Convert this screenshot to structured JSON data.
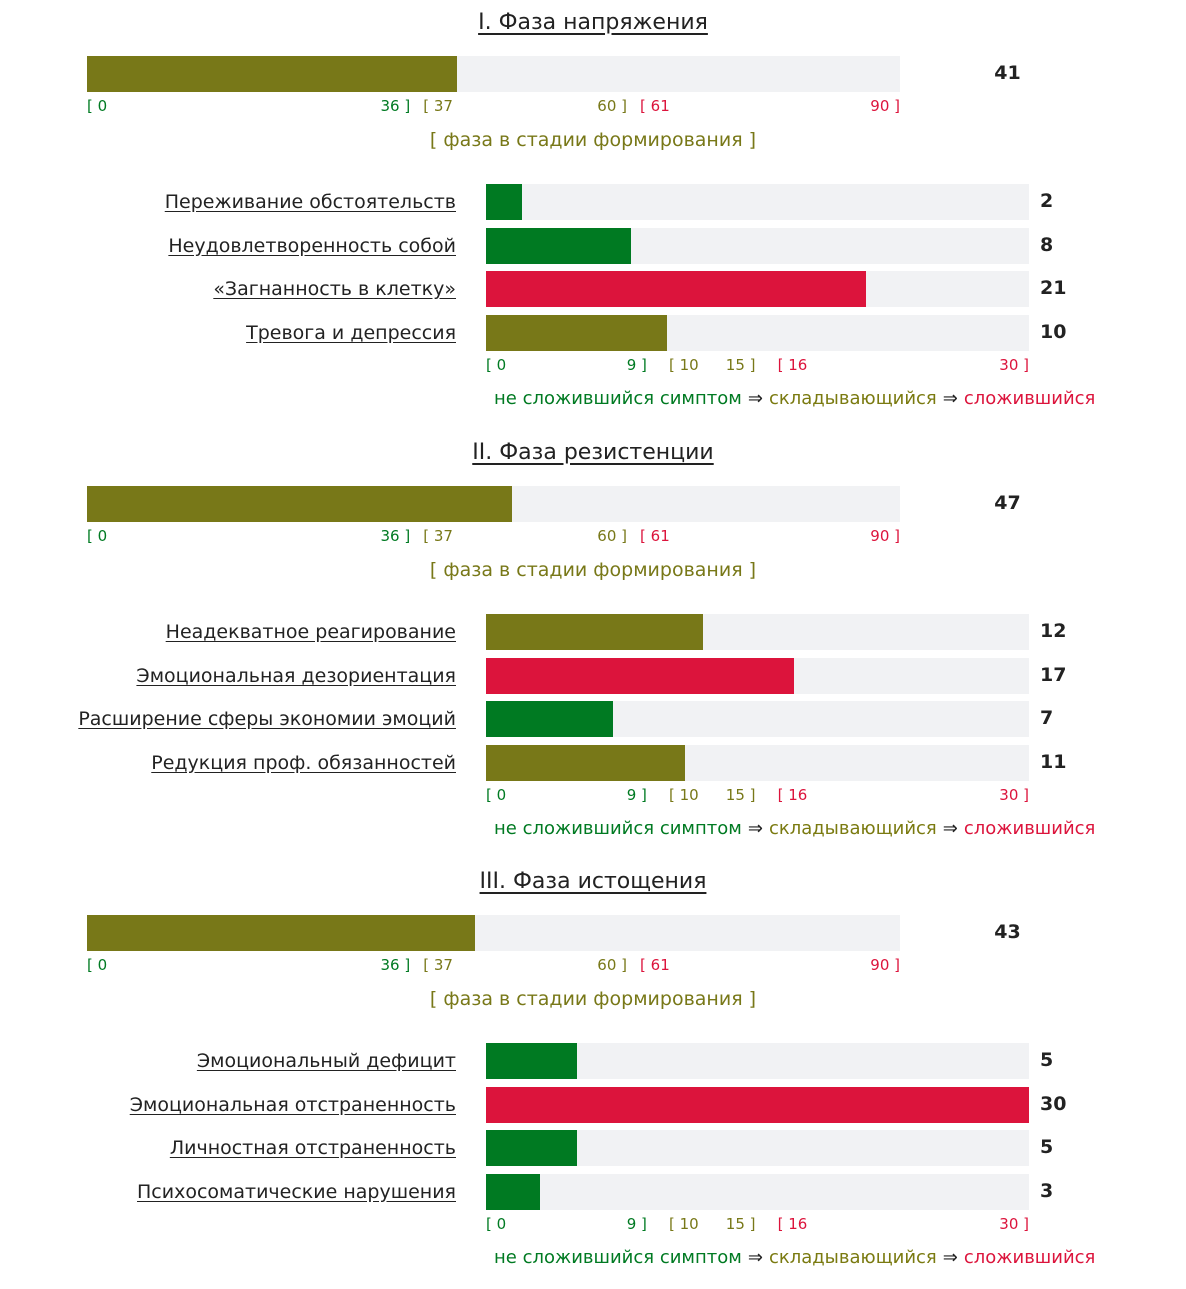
{
  "colors": {
    "green": "#007a22",
    "olive": "#787818",
    "red": "#dc143c",
    "track": "#f1f2f4"
  },
  "phase_scale": {
    "max": 90,
    "ticks": [
      {
        "text": "[ 0",
        "pos": 0,
        "color": "green",
        "align": "left"
      },
      {
        "text": "36 ]",
        "pos": 36,
        "color": "green",
        "align": "right"
      },
      {
        "text": "[ 37",
        "pos": 37,
        "color": "olive",
        "align": "left"
      },
      {
        "text": "60 ]",
        "pos": 60,
        "color": "olive",
        "align": "right"
      },
      {
        "text": "[ 61",
        "pos": 61,
        "color": "red",
        "align": "left"
      },
      {
        "text": "90 ]",
        "pos": 90,
        "color": "red",
        "align": "right"
      }
    ]
  },
  "symptom_scale": {
    "max": 30,
    "ticks": [
      {
        "text": "[ 0",
        "pos": 0,
        "color": "green",
        "align": "left"
      },
      {
        "text": "9 ]",
        "pos": 9,
        "color": "green",
        "align": "right"
      },
      {
        "text": "[ 10",
        "pos": 10,
        "color": "olive",
        "align": "left"
      },
      {
        "text": "15 ]",
        "pos": 15,
        "color": "olive",
        "align": "right"
      },
      {
        "text": "[ 16",
        "pos": 16,
        "color": "red",
        "align": "left"
      },
      {
        "text": "30 ]",
        "pos": 30,
        "color": "red",
        "align": "right"
      }
    ]
  },
  "legend": {
    "not_formed": "не сложившийся симптом",
    "forming": "складывающийся",
    "formed": "сложившийся",
    "arrow": "⇒"
  },
  "phases": [
    {
      "title": "I. Фаза напряжения",
      "value": 41,
      "value_text": "41",
      "status": "[ фаза в стадии формирования ]",
      "status_color": "olive",
      "symptoms": [
        {
          "label": "Переживание обстоятельств",
          "value": 2,
          "value_text": "2"
        },
        {
          "label": "Неудовлетворенность собой",
          "value": 8,
          "value_text": "8"
        },
        {
          "label": "«Загнанность в клетку»",
          "value": 21,
          "value_text": "21"
        },
        {
          "label": "Тревога и депрессия",
          "value": 10,
          "value_text": "10"
        }
      ]
    },
    {
      "title": "II. Фаза резистенции",
      "value": 47,
      "value_text": "47",
      "status": "[ фаза в стадии формирования ]",
      "status_color": "olive",
      "symptoms": [
        {
          "label": "Неадекватное реагирование",
          "value": 12,
          "value_text": "12"
        },
        {
          "label": "Эмоциональная дезориентация",
          "value": 17,
          "value_text": "17"
        },
        {
          "label": "Расширение сферы экономии эмоций",
          "value": 7,
          "value_text": "7"
        },
        {
          "label": "Редукция проф. обязанностей",
          "value": 11,
          "value_text": "11"
        }
      ]
    },
    {
      "title": "III. Фаза истощения",
      "value": 43,
      "value_text": "43",
      "status": "[ фаза в стадии формирования ]",
      "status_color": "olive",
      "symptoms": [
        {
          "label": "Эмоциональный дефицит",
          "value": 5,
          "value_text": "5"
        },
        {
          "label": "Эмоциональная отстраненность",
          "value": 30,
          "value_text": "30"
        },
        {
          "label": "Личностная отстраненность",
          "value": 5,
          "value_text": "5"
        },
        {
          "label": "Психосоматические нарушения",
          "value": 3,
          "value_text": "3"
        }
      ]
    }
  ]
}
